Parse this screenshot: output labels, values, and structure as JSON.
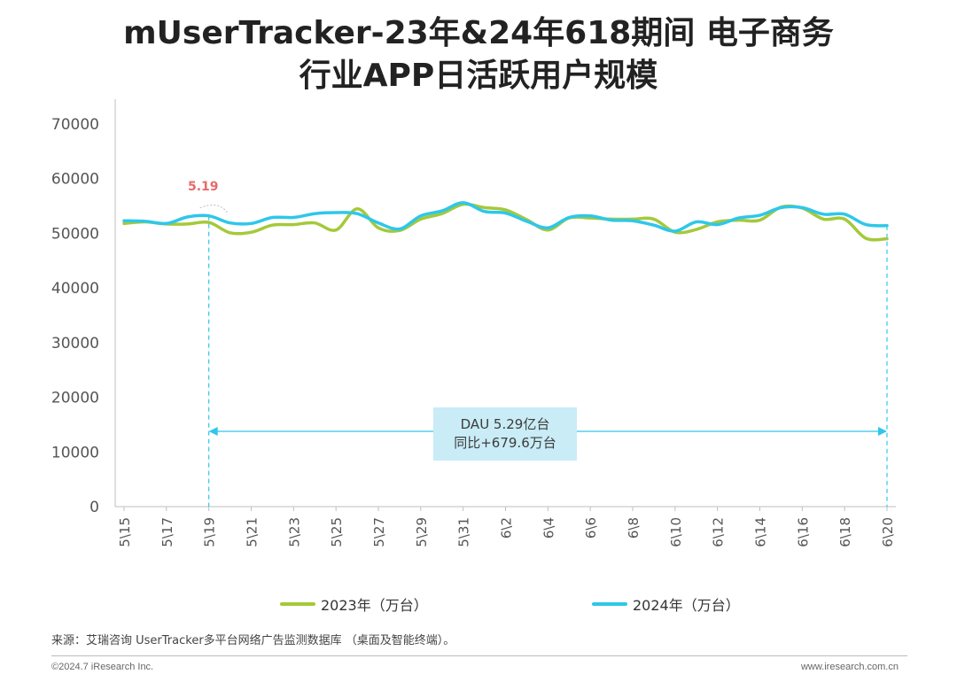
{
  "title_line1": "mUserTracker-23年&24年618期间 电子商务",
  "title_line2": "行业APP日活跃用户规模",
  "colors": {
    "series_2023": "#a4c93a",
    "series_2024": "#2ec7ea",
    "marker": "#2ec7ea",
    "peak_label": "#e86a6a",
    "annotation_bg": "#c9ecf7"
  },
  "annotation": {
    "line1": "DAU 5.29亿台",
    "line2": "同比+679.6万台"
  },
  "peak_label": "5.19",
  "source": "来源：艾瑞咨询 UserTracker多平台网络广告监测数据库 （桌面及智能终端）。",
  "footer_left": "©2024.7 iResearch Inc.",
  "footer_right": "www.iresearch.com.cn",
  "chart_data": {
    "type": "line",
    "ylim": [
      0,
      70000
    ],
    "yticks": [
      0,
      10000,
      20000,
      30000,
      40000,
      50000,
      60000,
      70000
    ],
    "x": [
      "5\\15",
      "5\\16",
      "5\\17",
      "5\\18",
      "5\\19",
      "5\\20",
      "5\\21",
      "5\\22",
      "5\\23",
      "5\\24",
      "5\\25",
      "5\\26",
      "5\\27",
      "5\\28",
      "5\\29",
      "5\\30",
      "5\\31",
      "6\\1",
      "6\\2",
      "6\\3",
      "6\\4",
      "6\\5",
      "6\\6",
      "6\\7",
      "6\\8",
      "6\\9",
      "6\\10",
      "6\\11",
      "6\\12",
      "6\\13",
      "6\\14",
      "6\\15",
      "6\\16",
      "6\\17",
      "6\\18",
      "6\\19",
      "6\\20"
    ],
    "xticks": [
      "5\\15",
      "5\\17",
      "5\\19",
      "5\\21",
      "5\\23",
      "5\\25",
      "5\\27",
      "5\\29",
      "5\\31",
      "6\\2",
      "6\\4",
      "6\\6",
      "6\\8",
      "6\\10",
      "6\\12",
      "6\\14",
      "6\\16",
      "6\\18",
      "6\\20"
    ],
    "grid": false,
    "legend_position": "bottom",
    "series": [
      {
        "name": "2023年（万台）",
        "values": [
          51800,
          52100,
          51700,
          51700,
          52000,
          50100,
          50200,
          51500,
          51600,
          51900,
          50600,
          54500,
          51000,
          50500,
          52600,
          53600,
          55300,
          54700,
          54300,
          52500,
          50600,
          52800,
          52800,
          52600,
          52600,
          52600,
          50200,
          50700,
          52100,
          52400,
          52400,
          54800,
          54600,
          52600,
          52600,
          49100,
          49000
        ]
      },
      {
        "name": "2024年（万台）",
        "values": [
          52300,
          52200,
          51800,
          53000,
          53200,
          51900,
          51800,
          52900,
          52900,
          53600,
          53800,
          53600,
          51900,
          50800,
          53200,
          54100,
          55600,
          54000,
          53700,
          52200,
          51000,
          52900,
          53200,
          52400,
          52300,
          51500,
          50400,
          52100,
          51600,
          52800,
          53300,
          54700,
          54700,
          53500,
          53500,
          51600,
          51400
        ]
      }
    ],
    "highlight_range": [
      "5\\19",
      "6\\20"
    ]
  }
}
